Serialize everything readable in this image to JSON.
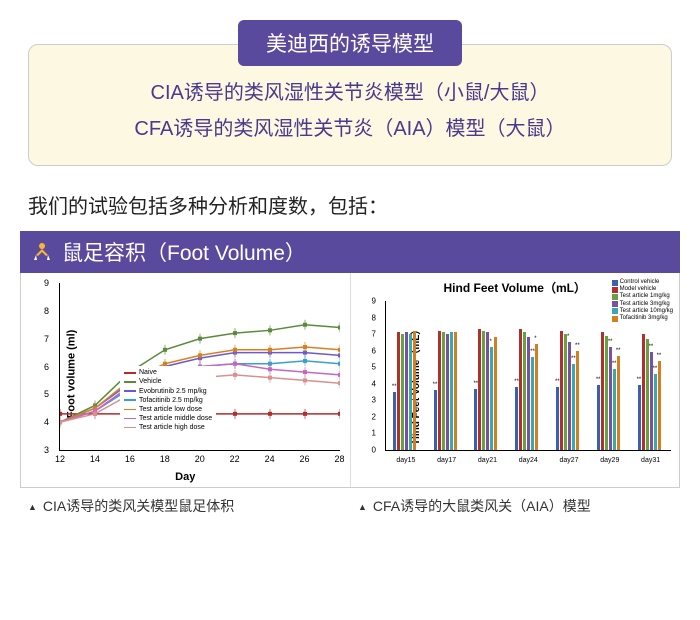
{
  "header": {
    "badge": "美迪西的诱导模型",
    "line1": "CIA诱导的类风湿性关节炎模型（小鼠/大鼠）",
    "line2": "CFA诱导的类风湿性关节炎（AIA）模型（大鼠）",
    "badge_bg": "#5a4a9e",
    "box_bg": "#fdf8e1",
    "text_color": "#4a3a8e"
  },
  "subtitle": "我们的试验包括多种分析和度数，包括：",
  "section": {
    "title": "鼠足容积（Foot Volume）",
    "bg": "#5a4a9e",
    "icon_color": "#f7b733"
  },
  "line_chart": {
    "type": "line",
    "ylabel": "Foot volume (ml)",
    "xlabel": "Day",
    "ylim": [
      3,
      9
    ],
    "ytick_step": 1,
    "xlim": [
      12,
      28
    ],
    "xtick_step": 2,
    "grid_color": "#e8e8e8",
    "series": [
      {
        "name": "Naive",
        "color": "#b52a2a",
        "marker": "square",
        "y": [
          4.3,
          4.3,
          4.3,
          4.3,
          4.3,
          4.3,
          4.3,
          4.3,
          4.3
        ]
      },
      {
        "name": "Vehicle",
        "color": "#5a8a3a",
        "marker": "circle",
        "y": [
          4.0,
          4.6,
          5.8,
          6.6,
          7.0,
          7.2,
          7.3,
          7.5,
          7.4
        ]
      },
      {
        "name": "Evobrutinib 2.5 mp/kg",
        "color": "#6a5acd",
        "marker": "line",
        "y": [
          4.0,
          4.5,
          5.4,
          6.0,
          6.3,
          6.5,
          6.5,
          6.5,
          6.4
        ]
      },
      {
        "name": "Tofacitinib 2.5 mp/kg",
        "color": "#3aa0c8",
        "marker": "square",
        "y": [
          4.0,
          4.4,
          5.2,
          5.7,
          6.0,
          6.1,
          6.1,
          6.2,
          6.1
        ]
      },
      {
        "name": "Test article low dose",
        "color": "#d88020",
        "marker": "diamond",
        "y": [
          4.0,
          4.5,
          5.5,
          6.1,
          6.4,
          6.6,
          6.6,
          6.7,
          6.6
        ]
      },
      {
        "name": "Test article middle dose",
        "color": "#c566c5",
        "marker": "triangle",
        "y": [
          4.0,
          4.4,
          5.3,
          5.8,
          6.0,
          6.1,
          5.9,
          5.8,
          5.7
        ]
      },
      {
        "name": "Test article high dose",
        "color": "#d89090",
        "marker": "triangle",
        "y": [
          4.0,
          4.3,
          5.0,
          5.4,
          5.6,
          5.7,
          5.6,
          5.5,
          5.4
        ]
      }
    ],
    "x": [
      12,
      14,
      16,
      18,
      20,
      22,
      24,
      26,
      28
    ],
    "caption": "CIA诱导的类风关模型鼠足体积"
  },
  "bar_chart": {
    "type": "grouped-bar",
    "title": "Hind Feet Volume（mL）",
    "ylabel": "Hind Feet Volume（mL）",
    "ylim": [
      0,
      9
    ],
    "ytick_step": 1,
    "categories": [
      "day15",
      "day17",
      "day21",
      "day24",
      "day27",
      "day29",
      "day31"
    ],
    "legend": [
      {
        "name": "Control vehicle",
        "color": "#3a60b0"
      },
      {
        "name": "Model vehicle",
        "color": "#b03030"
      },
      {
        "name": "Test article 1mg/kg",
        "color": "#6aa040"
      },
      {
        "name": "Test article 3mg/kg",
        "color": "#7a50a0"
      },
      {
        "name": "Test article 10mg/kg",
        "color": "#3aa8b0"
      },
      {
        "name": "Tofacitinib 3mg/kg",
        "color": "#d08020"
      }
    ],
    "groups": [
      {
        "values": [
          3.5,
          7.1,
          7.0,
          7.1,
          7.0,
          7.2
        ],
        "stars": [
          "**",
          "",
          "",
          "",
          "",
          ""
        ]
      },
      {
        "values": [
          3.6,
          7.2,
          7.1,
          7.0,
          7.1,
          7.1
        ],
        "stars": [
          "**",
          "",
          "",
          "",
          "",
          ""
        ]
      },
      {
        "values": [
          3.7,
          7.3,
          7.2,
          7.1,
          6.2,
          6.8
        ],
        "stars": [
          "**",
          "",
          "",
          "",
          "*",
          ""
        ]
      },
      {
        "values": [
          3.8,
          7.3,
          7.1,
          6.8,
          5.6,
          6.4
        ],
        "stars": [
          "**",
          "",
          "",
          "",
          "**",
          "*"
        ]
      },
      {
        "values": [
          3.8,
          7.2,
          7.0,
          6.5,
          5.2,
          6.0
        ],
        "stars": [
          "**",
          "",
          "",
          "*",
          "**",
          "**"
        ]
      },
      {
        "values": [
          3.9,
          7.1,
          6.9,
          6.2,
          4.9,
          5.7
        ],
        "stars": [
          "**",
          "",
          "",
          "**",
          "**",
          "**"
        ]
      },
      {
        "values": [
          3.9,
          7.0,
          6.7,
          5.9,
          4.6,
          5.4
        ],
        "stars": [
          "**",
          "",
          "",
          "**",
          "**",
          "**"
        ]
      }
    ],
    "caption": "CFA诱导的大鼠类风关（AIA）模型"
  }
}
